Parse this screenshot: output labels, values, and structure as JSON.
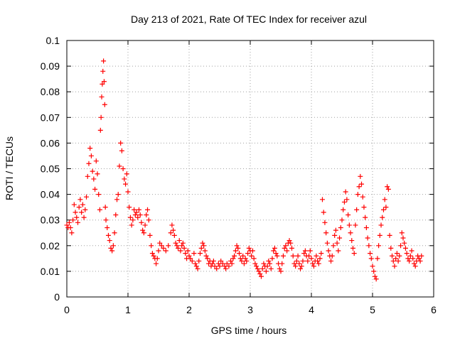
{
  "chart_data": {
    "type": "scatter",
    "title": "Day 213 of 2021, Rate Of TEC Index for receiver azul",
    "xlabel": "GPS time / hours",
    "ylabel": "ROTI / TECUs",
    "xlim": [
      0,
      6
    ],
    "ylim": [
      0,
      0.1
    ],
    "xticks": [
      0,
      1,
      2,
      3,
      4,
      5,
      6
    ],
    "xtick_labels": [
      "0",
      "1",
      "2",
      "3",
      "4",
      "5",
      "6"
    ],
    "yticks": [
      0,
      0.01,
      0.02,
      0.03,
      0.04,
      0.05,
      0.06,
      0.07,
      0.08,
      0.09,
      0.1
    ],
    "ytick_labels": [
      "0",
      "0.01",
      "0.02",
      "0.03",
      "0.04",
      "0.05",
      "0.06",
      "0.07",
      "0.08",
      "0.09",
      "0.1"
    ],
    "grid": true,
    "marker": "+",
    "color": "#ff0000",
    "series": [
      {
        "name": "ROTI",
        "points": [
          [
            0.0,
            0.028
          ],
          [
            0.02,
            0.027
          ],
          [
            0.04,
            0.029
          ],
          [
            0.06,
            0.027
          ],
          [
            0.08,
            0.025
          ],
          [
            0.1,
            0.03
          ],
          [
            0.12,
            0.036
          ],
          [
            0.14,
            0.033
          ],
          [
            0.16,
            0.031
          ],
          [
            0.18,
            0.029
          ],
          [
            0.2,
            0.035
          ],
          [
            0.22,
            0.038
          ],
          [
            0.24,
            0.033
          ],
          [
            0.26,
            0.036
          ],
          [
            0.28,
            0.031
          ],
          [
            0.3,
            0.034
          ],
          [
            0.32,
            0.039
          ],
          [
            0.34,
            0.047
          ],
          [
            0.36,
            0.052
          ],
          [
            0.38,
            0.058
          ],
          [
            0.4,
            0.055
          ],
          [
            0.42,
            0.049
          ],
          [
            0.44,
            0.046
          ],
          [
            0.46,
            0.042
          ],
          [
            0.48,
            0.053
          ],
          [
            0.5,
            0.048
          ],
          [
            0.52,
            0.04
          ],
          [
            0.54,
            0.034
          ],
          [
            0.55,
            0.065
          ],
          [
            0.56,
            0.07
          ],
          [
            0.57,
            0.078
          ],
          [
            0.58,
            0.083
          ],
          [
            0.59,
            0.088
          ],
          [
            0.6,
            0.092
          ],
          [
            0.61,
            0.084
          ],
          [
            0.62,
            0.075
          ],
          [
            0.63,
            0.035
          ],
          [
            0.64,
            0.03
          ],
          [
            0.66,
            0.027
          ],
          [
            0.68,
            0.024
          ],
          [
            0.7,
            0.022
          ],
          [
            0.72,
            0.019
          ],
          [
            0.74,
            0.018
          ],
          [
            0.76,
            0.02
          ],
          [
            0.78,
            0.025
          ],
          [
            0.8,
            0.032
          ],
          [
            0.82,
            0.038
          ],
          [
            0.84,
            0.04
          ],
          [
            0.86,
            0.051
          ],
          [
            0.88,
            0.06
          ],
          [
            0.9,
            0.057
          ],
          [
            0.92,
            0.05
          ],
          [
            0.94,
            0.046
          ],
          [
            0.96,
            0.044
          ],
          [
            0.98,
            0.048
          ],
          [
            1.0,
            0.041
          ],
          [
            1.02,
            0.035
          ],
          [
            1.04,
            0.031
          ],
          [
            1.06,
            0.028
          ],
          [
            1.08,
            0.03
          ],
          [
            1.1,
            0.034
          ],
          [
            1.12,
            0.032
          ],
          [
            1.14,
            0.033
          ],
          [
            1.16,
            0.031
          ],
          [
            1.18,
            0.034
          ],
          [
            1.2,
            0.032
          ],
          [
            1.22,
            0.029
          ],
          [
            1.24,
            0.026
          ],
          [
            1.26,
            0.025
          ],
          [
            1.28,
            0.028
          ],
          [
            1.3,
            0.032
          ],
          [
            1.32,
            0.034
          ],
          [
            1.34,
            0.03
          ],
          [
            1.36,
            0.024
          ],
          [
            1.38,
            0.02
          ],
          [
            1.4,
            0.017
          ],
          [
            1.42,
            0.016
          ],
          [
            1.44,
            0.015
          ],
          [
            1.46,
            0.013
          ],
          [
            1.48,
            0.015
          ],
          [
            1.5,
            0.018
          ],
          [
            1.52,
            0.021
          ],
          [
            1.55,
            0.02
          ],
          [
            1.58,
            0.019
          ],
          [
            1.62,
            0.018
          ],
          [
            1.66,
            0.02
          ],
          [
            1.7,
            0.025
          ],
          [
            1.72,
            0.028
          ],
          [
            1.74,
            0.026
          ],
          [
            1.76,
            0.024
          ],
          [
            1.78,
            0.021
          ],
          [
            1.8,
            0.02
          ],
          [
            1.82,
            0.019
          ],
          [
            1.84,
            0.022
          ],
          [
            1.86,
            0.018
          ],
          [
            1.88,
            0.02
          ],
          [
            1.9,
            0.021
          ],
          [
            1.92,
            0.019
          ],
          [
            1.94,
            0.017
          ],
          [
            1.96,
            0.015
          ],
          [
            1.98,
            0.018
          ],
          [
            2.0,
            0.016
          ],
          [
            2.02,
            0.015
          ],
          [
            2.05,
            0.014
          ],
          [
            2.08,
            0.017
          ],
          [
            2.1,
            0.013
          ],
          [
            2.12,
            0.012
          ],
          [
            2.14,
            0.011
          ],
          [
            2.16,
            0.014
          ],
          [
            2.18,
            0.017
          ],
          [
            2.2,
            0.019
          ],
          [
            2.22,
            0.021
          ],
          [
            2.24,
            0.02
          ],
          [
            2.26,
            0.018
          ],
          [
            2.28,
            0.016
          ],
          [
            2.3,
            0.015
          ],
          [
            2.32,
            0.013
          ],
          [
            2.34,
            0.014
          ],
          [
            2.36,
            0.012
          ],
          [
            2.38,
            0.013
          ],
          [
            2.4,
            0.014
          ],
          [
            2.42,
            0.012
          ],
          [
            2.45,
            0.011
          ],
          [
            2.48,
            0.013
          ],
          [
            2.5,
            0.012
          ],
          [
            2.52,
            0.014
          ],
          [
            2.55,
            0.013
          ],
          [
            2.58,
            0.012
          ],
          [
            2.6,
            0.011
          ],
          [
            2.62,
            0.013
          ],
          [
            2.65,
            0.012
          ],
          [
            2.68,
            0.014
          ],
          [
            2.7,
            0.013
          ],
          [
            2.72,
            0.015
          ],
          [
            2.74,
            0.016
          ],
          [
            2.76,
            0.018
          ],
          [
            2.78,
            0.02
          ],
          [
            2.8,
            0.019
          ],
          [
            2.82,
            0.017
          ],
          [
            2.84,
            0.015
          ],
          [
            2.86,
            0.014
          ],
          [
            2.88,
            0.016
          ],
          [
            2.9,
            0.013
          ],
          [
            2.92,
            0.015
          ],
          [
            2.94,
            0.014
          ],
          [
            2.96,
            0.017
          ],
          [
            2.98,
            0.019
          ],
          [
            3.0,
            0.018
          ],
          [
            3.02,
            0.016
          ],
          [
            3.04,
            0.018
          ],
          [
            3.06,
            0.015
          ],
          [
            3.08,
            0.013
          ],
          [
            3.1,
            0.012
          ],
          [
            3.12,
            0.011
          ],
          [
            3.14,
            0.01
          ],
          [
            3.16,
            0.009
          ],
          [
            3.18,
            0.008
          ],
          [
            3.2,
            0.011
          ],
          [
            3.22,
            0.013
          ],
          [
            3.24,
            0.012
          ],
          [
            3.26,
            0.01
          ],
          [
            3.28,
            0.012
          ],
          [
            3.3,
            0.014
          ],
          [
            3.32,
            0.013
          ],
          [
            3.34,
            0.011
          ],
          [
            3.36,
            0.015
          ],
          [
            3.38,
            0.018
          ],
          [
            3.4,
            0.019
          ],
          [
            3.42,
            0.017
          ],
          [
            3.44,
            0.016
          ],
          [
            3.46,
            0.013
          ],
          [
            3.48,
            0.011
          ],
          [
            3.5,
            0.01
          ],
          [
            3.52,
            0.013
          ],
          [
            3.54,
            0.016
          ],
          [
            3.56,
            0.019
          ],
          [
            3.58,
            0.02
          ],
          [
            3.6,
            0.018
          ],
          [
            3.62,
            0.021
          ],
          [
            3.64,
            0.022
          ],
          [
            3.66,
            0.021
          ],
          [
            3.68,
            0.019
          ],
          [
            3.7,
            0.016
          ],
          [
            3.72,
            0.013
          ],
          [
            3.74,
            0.012
          ],
          [
            3.76,
            0.014
          ],
          [
            3.78,
            0.016
          ],
          [
            3.8,
            0.013
          ],
          [
            3.82,
            0.011
          ],
          [
            3.84,
            0.012
          ],
          [
            3.86,
            0.014
          ],
          [
            3.88,
            0.017
          ],
          [
            3.9,
            0.018
          ],
          [
            3.92,
            0.016
          ],
          [
            3.94,
            0.014
          ],
          [
            3.96,
            0.016
          ],
          [
            3.98,
            0.018
          ],
          [
            4.0,
            0.015
          ],
          [
            4.02,
            0.013
          ],
          [
            4.04,
            0.012
          ],
          [
            4.06,
            0.014
          ],
          [
            4.08,
            0.016
          ],
          [
            4.1,
            0.014
          ],
          [
            4.12,
            0.013
          ],
          [
            4.14,
            0.015
          ],
          [
            4.16,
            0.017
          ],
          [
            4.18,
            0.038
          ],
          [
            4.2,
            0.033
          ],
          [
            4.22,
            0.029
          ],
          [
            4.24,
            0.025
          ],
          [
            4.26,
            0.021
          ],
          [
            4.28,
            0.018
          ],
          [
            4.3,
            0.016
          ],
          [
            4.32,
            0.014
          ],
          [
            4.34,
            0.016
          ],
          [
            4.36,
            0.02
          ],
          [
            4.38,
            0.024
          ],
          [
            4.4,
            0.026
          ],
          [
            4.42,
            0.021
          ],
          [
            4.44,
            0.018
          ],
          [
            4.46,
            0.023
          ],
          [
            4.48,
            0.027
          ],
          [
            4.5,
            0.03
          ],
          [
            4.52,
            0.034
          ],
          [
            4.54,
            0.037
          ],
          [
            4.56,
            0.041
          ],
          [
            4.58,
            0.038
          ],
          [
            4.6,
            0.032
          ],
          [
            4.62,
            0.028
          ],
          [
            4.64,
            0.025
          ],
          [
            4.66,
            0.022
          ],
          [
            4.68,
            0.019
          ],
          [
            4.7,
            0.017
          ],
          [
            4.72,
            0.028
          ],
          [
            4.74,
            0.034
          ],
          [
            4.76,
            0.04
          ],
          [
            4.78,
            0.043
          ],
          [
            4.8,
            0.047
          ],
          [
            4.82,
            0.044
          ],
          [
            4.84,
            0.039
          ],
          [
            4.86,
            0.035
          ],
          [
            4.88,
            0.031
          ],
          [
            4.9,
            0.027
          ],
          [
            4.92,
            0.023
          ],
          [
            4.94,
            0.02
          ],
          [
            4.96,
            0.017
          ],
          [
            4.98,
            0.015
          ],
          [
            5.0,
            0.012
          ],
          [
            5.02,
            0.01
          ],
          [
            5.04,
            0.008
          ],
          [
            5.06,
            0.007
          ],
          [
            5.08,
            0.015
          ],
          [
            5.1,
            0.02
          ],
          [
            5.12,
            0.024
          ],
          [
            5.14,
            0.028
          ],
          [
            5.16,
            0.031
          ],
          [
            5.18,
            0.034
          ],
          [
            5.2,
            0.038
          ],
          [
            5.22,
            0.035
          ],
          [
            5.24,
            0.043
          ],
          [
            5.26,
            0.042
          ],
          [
            5.28,
            0.024
          ],
          [
            5.3,
            0.019
          ],
          [
            5.32,
            0.016
          ],
          [
            5.34,
            0.014
          ],
          [
            5.36,
            0.012
          ],
          [
            5.38,
            0.015
          ],
          [
            5.4,
            0.017
          ],
          [
            5.42,
            0.014
          ],
          [
            5.44,
            0.016
          ],
          [
            5.46,
            0.02
          ],
          [
            5.48,
            0.025
          ],
          [
            5.5,
            0.023
          ],
          [
            5.52,
            0.021
          ],
          [
            5.54,
            0.019
          ],
          [
            5.56,
            0.017
          ],
          [
            5.58,
            0.015
          ],
          [
            5.6,
            0.014
          ],
          [
            5.62,
            0.016
          ],
          [
            5.64,
            0.018
          ],
          [
            5.66,
            0.015
          ],
          [
            5.68,
            0.013
          ],
          [
            5.7,
            0.012
          ],
          [
            5.72,
            0.014
          ],
          [
            5.74,
            0.016
          ],
          [
            5.76,
            0.015
          ],
          [
            5.78,
            0.014
          ],
          [
            5.8,
            0.016
          ]
        ]
      }
    ]
  }
}
